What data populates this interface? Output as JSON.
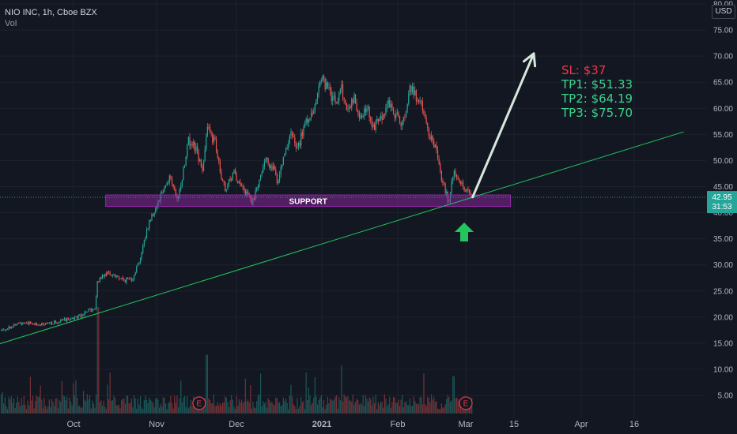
{
  "header": {
    "symbol_line": "NIO INC, 1h, Cboe BZX",
    "indicator": "Vol"
  },
  "currency": "USD",
  "annotations": {
    "support_label": "SUPPORT",
    "sl": "SL:   $37",
    "tp1": "TP1: $51.33",
    "tp2": "TP2: $64.19",
    "tp3": "TP3: $75.70"
  },
  "price_marker": {
    "price": "42.95",
    "countdown": "31:53",
    "color": "#26a69a"
  },
  "colors": {
    "background": "#131722",
    "up": "#26a69a",
    "down": "#ef5350",
    "trendline": "#22c55e",
    "support_zone": "#9c27b0",
    "sl_text": "#f23645",
    "tp_text": "#3bd48c",
    "projection_arrow": "#d7e7dc",
    "bounce_arrow": "#22c55e"
  },
  "chart_data": {
    "type": "candlestick",
    "title": "NIO INC, 1h, Cboe BZX",
    "ylabel": "USD",
    "ylim": [
      3.5,
      80
    ],
    "y_ticks": [
      "80.00",
      "75.00",
      "70.00",
      "65.00",
      "60.00",
      "55.00",
      "50.00",
      "45.00",
      "40.00",
      "35.00",
      "30.00",
      "25.00",
      "20.00",
      "15.00",
      "10.00",
      "5.00"
    ],
    "x_ticks": [
      "Oct",
      "Nov",
      "Dec",
      "2021",
      "Feb",
      "Mar",
      "15",
      "Apr",
      "16"
    ],
    "close_path": {
      "x": [
        "2020-09-04",
        "2020-09-12",
        "2020-09-20",
        "2020-09-28",
        "2020-10-02",
        "2020-10-06",
        "2020-10-09",
        "2020-10-10",
        "2020-10-13",
        "2020-10-16",
        "2020-10-20",
        "2020-10-23",
        "2020-10-26",
        "2020-10-29",
        "2020-11-01",
        "2020-11-03",
        "2020-11-06",
        "2020-11-09",
        "2020-11-11",
        "2020-11-13",
        "2020-11-16",
        "2020-11-18",
        "2020-11-20",
        "2020-11-23",
        "2020-11-25",
        "2020-11-27",
        "2020-11-30",
        "2020-12-02",
        "2020-12-04",
        "2020-12-07",
        "2020-12-09",
        "2020-12-11",
        "2020-12-14",
        "2020-12-16",
        "2020-12-18",
        "2020-12-21",
        "2020-12-23",
        "2020-12-26",
        "2020-12-29",
        "2021-01-01",
        "2021-01-04",
        "2021-01-07",
        "2021-01-09",
        "2021-01-11",
        "2021-01-14",
        "2021-01-17",
        "2021-01-20",
        "2021-01-22",
        "2021-01-25",
        "2021-01-28",
        "2021-01-31",
        "2021-02-03",
        "2021-02-06",
        "2021-02-09",
        "2021-02-11",
        "2021-02-14",
        "2021-02-17",
        "2021-02-19",
        "2021-02-22",
        "2021-02-24",
        "2021-02-26",
        "2021-03-01",
        "2021-03-03"
      ],
      "y": [
        17.5,
        19.0,
        18.5,
        19.5,
        20.0,
        21.0,
        21.5,
        27.0,
        28.5,
        28.0,
        27.0,
        27.5,
        31.5,
        38.0,
        41.5,
        44.0,
        47.0,
        42.0,
        48.0,
        54.0,
        52.0,
        48.0,
        56.0,
        53.5,
        47.0,
        44.0,
        48.5,
        45.0,
        44.0,
        42.0,
        46.0,
        50.0,
        49.0,
        46.0,
        51.0,
        55.0,
        52.0,
        57.0,
        60.0,
        66.0,
        63.0,
        61.0,
        64.0,
        60.0,
        62.0,
        58.0,
        60.0,
        56.0,
        58.0,
        61.0,
        59.0,
        57.0,
        64.0,
        62.0,
        60.0,
        55.0,
        52.0,
        47.0,
        42.0,
        48.0,
        46.0,
        44.5,
        42.95
      ]
    },
    "volume": {
      "note": "volume histogram in lower pane; scale unlabeled",
      "spikes": [
        {
          "x": "2020-10-10",
          "value": 1.0
        },
        {
          "x": "2020-11-20",
          "value": 0.55
        },
        {
          "x": "2021-01-09",
          "value": 0.45
        },
        {
          "x": "2021-02-24",
          "value": 0.35
        }
      ]
    },
    "support_zone": {
      "label": "SUPPORT",
      "low": 41.2,
      "high": 43.4,
      "x_start": "2020-10-13",
      "x_end": "2021-03-14"
    },
    "trendline": {
      "points": [
        {
          "x": "2020-09-01",
          "y": 14.5
        },
        {
          "x": "2021-04-30",
          "y": 55.5
        }
      ]
    },
    "current_price": 42.95,
    "levels": {
      "SL": 37,
      "TP1": 51.33,
      "TP2": 64.19,
      "TP3": 75.7
    },
    "projection_arrow": {
      "from": {
        "x": "2021-03-03",
        "y": 43.0
      },
      "to": {
        "x": "2021-03-20",
        "y": 70.5
      }
    },
    "earnings_markers": [
      {
        "x": "2020-11-17",
        "label": "E"
      },
      {
        "x": "2021-03-01",
        "label": "E"
      }
    ],
    "grid": true,
    "legend": "top-left"
  }
}
